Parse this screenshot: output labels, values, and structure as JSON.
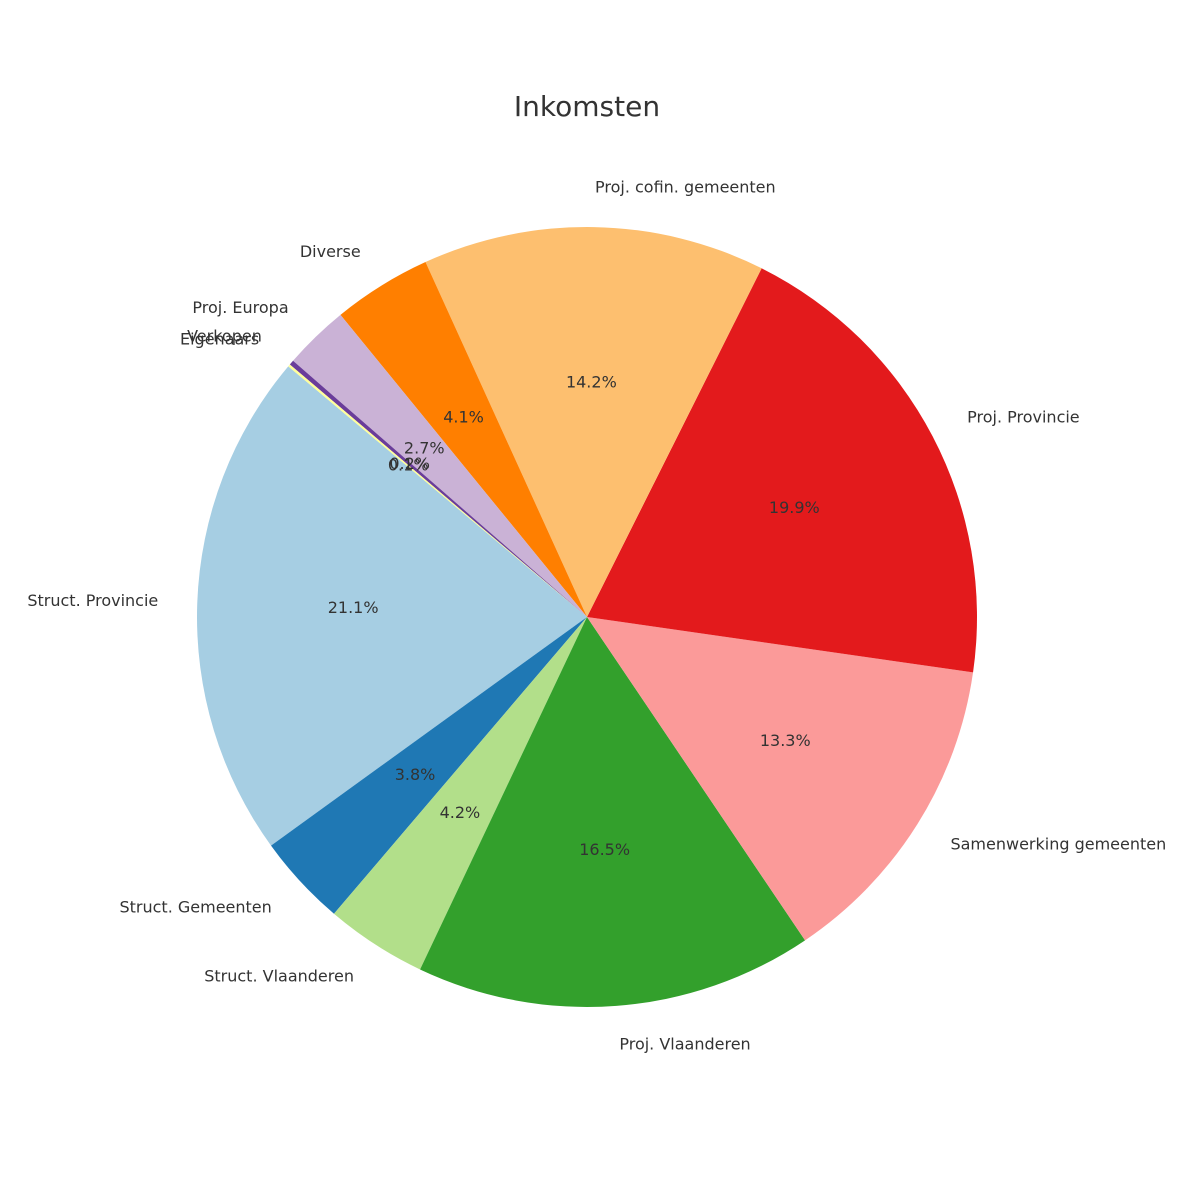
{
  "chart_data": {
    "type": "pie",
    "title": "Inkomsten",
    "startangle": 140,
    "categories": [
      "Struct. Provincie",
      "Struct. Gemeenten",
      "Struct. Vlaanderen",
      "Proj. Vlaanderen",
      "Samenwerking gemeenten",
      "Proj. Provincie",
      "Proj. cofin. gemeenten",
      "Diverse",
      "Proj. Europa",
      "Verkopen",
      "Eigenaars"
    ],
    "values": [
      21.1,
      3.8,
      4.2,
      16.5,
      13.3,
      19.9,
      14.2,
      4.1,
      2.7,
      0.2,
      0.1
    ],
    "value_labels": [
      "21.1%",
      "3.8%",
      "4.2%",
      "16.5%",
      "13.3%",
      "19.9%",
      "14.2%",
      "4.1%",
      "2.7%",
      "0.2%",
      "0.1%"
    ],
    "colors": [
      "#a6cee3",
      "#1f78b4",
      "#b2df8a",
      "#33a02c",
      "#fb9a99",
      "#e31a1c",
      "#fdbf6f",
      "#ff7f00",
      "#cab2d6",
      "#6a3d9a",
      "#ffff99"
    ]
  }
}
